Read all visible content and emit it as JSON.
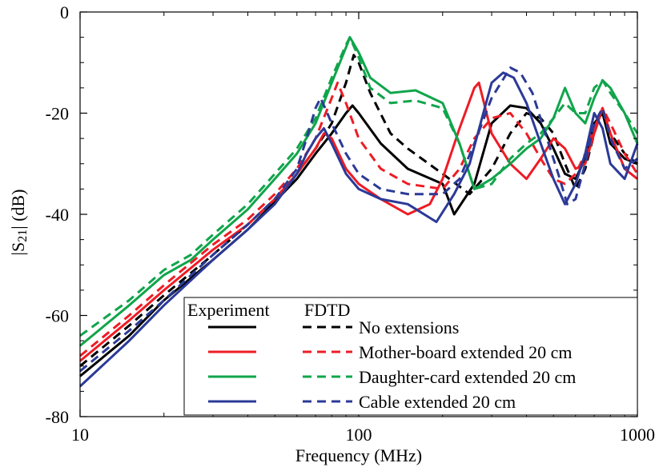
{
  "chart_data": {
    "type": "line",
    "title": "",
    "xlabel": "Frequency (MHz)",
    "ylabel_parts": [
      "|S",
      "21",
      "| (dB)"
    ],
    "x_scale": "log",
    "xlim": [
      10,
      1000
    ],
    "ylim": [
      -80,
      0
    ],
    "x_ticks": [
      10,
      100,
      1000
    ],
    "x_tick_labels": [
      "10",
      "100",
      "1000"
    ],
    "y_ticks": [
      0,
      -20,
      -40,
      -60,
      -80
    ],
    "y_tick_labels": [
      "0",
      "-20",
      "-40",
      "-60",
      "-80"
    ],
    "grid": false,
    "legend": {
      "placement": "bottom-right",
      "header_experiment": "Experiment",
      "header_fdtd": "FDTD",
      "entries": [
        "No extensions",
        "Mother-board extended 20 cm",
        "Daughter-card extended 20 cm",
        "Cable extended 20 cm"
      ]
    },
    "series": [
      {
        "name": "No extensions",
        "method": "Experiment",
        "color": "#000000",
        "dash": "solid",
        "points": [
          [
            10,
            -72
          ],
          [
            15,
            -64
          ],
          [
            20,
            -57
          ],
          [
            30,
            -49
          ],
          [
            40,
            -43
          ],
          [
            50,
            -37.5
          ],
          [
            60,
            -33
          ],
          [
            70,
            -28
          ],
          [
            80,
            -24
          ],
          [
            90,
            -20
          ],
          [
            95,
            -18.5
          ],
          [
            100,
            -20
          ],
          [
            120,
            -26
          ],
          [
            150,
            -31
          ],
          [
            200,
            -34
          ],
          [
            220,
            -40
          ],
          [
            260,
            -34
          ],
          [
            300,
            -22
          ],
          [
            350,
            -18.5
          ],
          [
            400,
            -19
          ],
          [
            450,
            -22
          ],
          [
            500,
            -27
          ],
          [
            550,
            -32
          ],
          [
            600,
            -33
          ],
          [
            650,
            -29
          ],
          [
            700,
            -22
          ],
          [
            750,
            -20
          ],
          [
            800,
            -26
          ],
          [
            900,
            -29
          ],
          [
            1000,
            -30
          ]
        ]
      },
      {
        "name": "No extensions",
        "method": "FDTD",
        "color": "#000000",
        "dash": "dashed",
        "points": [
          [
            10,
            -70
          ],
          [
            15,
            -62
          ],
          [
            20,
            -56
          ],
          [
            30,
            -48
          ],
          [
            40,
            -42
          ],
          [
            50,
            -37
          ],
          [
            60,
            -32
          ],
          [
            70,
            -27
          ],
          [
            80,
            -22
          ],
          [
            90,
            -14
          ],
          [
            96,
            -8.5
          ],
          [
            100,
            -10
          ],
          [
            110,
            -16
          ],
          [
            130,
            -24
          ],
          [
            150,
            -27
          ],
          [
            200,
            -32
          ],
          [
            250,
            -36
          ],
          [
            300,
            -31
          ],
          [
            350,
            -24
          ],
          [
            400,
            -20
          ],
          [
            450,
            -21
          ],
          [
            500,
            -24
          ],
          [
            550,
            -30
          ],
          [
            600,
            -35
          ],
          [
            650,
            -31
          ],
          [
            700,
            -24
          ],
          [
            750,
            -19
          ],
          [
            800,
            -24
          ],
          [
            900,
            -28
          ],
          [
            1000,
            -30
          ]
        ]
      },
      {
        "name": "Mother-board extended 20 cm",
        "method": "Experiment",
        "color": "#ee1c25",
        "dash": "solid",
        "points": [
          [
            10,
            -69
          ],
          [
            15,
            -61
          ],
          [
            20,
            -55
          ],
          [
            30,
            -47
          ],
          [
            40,
            -42
          ],
          [
            50,
            -37
          ],
          [
            60,
            -32
          ],
          [
            70,
            -27
          ],
          [
            75,
            -24
          ],
          [
            80,
            -25
          ],
          [
            90,
            -31
          ],
          [
            100,
            -34
          ],
          [
            120,
            -37
          ],
          [
            150,
            -40
          ],
          [
            180,
            -38
          ],
          [
            200,
            -33
          ],
          [
            230,
            -23
          ],
          [
            260,
            -15
          ],
          [
            270,
            -14
          ],
          [
            300,
            -24
          ],
          [
            350,
            -30
          ],
          [
            400,
            -33
          ],
          [
            450,
            -29
          ],
          [
            500,
            -25
          ],
          [
            550,
            -27
          ],
          [
            600,
            -31
          ],
          [
            650,
            -30
          ],
          [
            700,
            -24
          ],
          [
            750,
            -19
          ],
          [
            800,
            -24
          ],
          [
            900,
            -31
          ],
          [
            1000,
            -33
          ]
        ]
      },
      {
        "name": "Mother-board extended 20 cm",
        "method": "FDTD",
        "color": "#ee1c25",
        "dash": "dashed",
        "points": [
          [
            10,
            -68
          ],
          [
            15,
            -60
          ],
          [
            20,
            -54
          ],
          [
            30,
            -46
          ],
          [
            40,
            -41
          ],
          [
            50,
            -36
          ],
          [
            60,
            -31
          ],
          [
            70,
            -25
          ],
          [
            80,
            -17
          ],
          [
            84,
            -14
          ],
          [
            90,
            -18
          ],
          [
            100,
            -25
          ],
          [
            120,
            -31
          ],
          [
            150,
            -34
          ],
          [
            200,
            -35
          ],
          [
            230,
            -31
          ],
          [
            260,
            -25
          ],
          [
            300,
            -21
          ],
          [
            350,
            -20
          ],
          [
            400,
            -24
          ],
          [
            450,
            -29
          ],
          [
            500,
            -33
          ],
          [
            550,
            -34
          ],
          [
            600,
            -32
          ],
          [
            650,
            -28
          ],
          [
            700,
            -23
          ],
          [
            750,
            -19
          ],
          [
            800,
            -22
          ],
          [
            900,
            -28
          ],
          [
            1000,
            -32
          ]
        ]
      },
      {
        "name": "Daughter-card extended 20 cm",
        "method": "Experiment",
        "color": "#10a54b",
        "dash": "solid",
        "points": [
          [
            10,
            -66
          ],
          [
            15,
            -58
          ],
          [
            20,
            -52
          ],
          [
            25,
            -49
          ],
          [
            30,
            -45
          ],
          [
            40,
            -39
          ],
          [
            50,
            -33
          ],
          [
            60,
            -28
          ],
          [
            70,
            -22
          ],
          [
            80,
            -14
          ],
          [
            90,
            -7
          ],
          [
            93,
            -5
          ],
          [
            100,
            -8
          ],
          [
            110,
            -13
          ],
          [
            130,
            -16
          ],
          [
            160,
            -15.5
          ],
          [
            200,
            -18
          ],
          [
            230,
            -26
          ],
          [
            260,
            -35
          ],
          [
            300,
            -33
          ],
          [
            350,
            -30
          ],
          [
            400,
            -27
          ],
          [
            450,
            -25
          ],
          [
            500,
            -21
          ],
          [
            550,
            -15
          ],
          [
            600,
            -20
          ],
          [
            650,
            -22
          ],
          [
            700,
            -17
          ],
          [
            750,
            -13.5
          ],
          [
            800,
            -15
          ],
          [
            900,
            -20
          ],
          [
            1000,
            -26
          ]
        ]
      },
      {
        "name": "Daughter-card extended 20 cm",
        "method": "FDTD",
        "color": "#10a54b",
        "dash": "dashed",
        "points": [
          [
            10,
            -64
          ],
          [
            15,
            -57
          ],
          [
            20,
            -51
          ],
          [
            25,
            -48
          ],
          [
            30,
            -44
          ],
          [
            40,
            -38
          ],
          [
            50,
            -32
          ],
          [
            60,
            -27
          ],
          [
            70,
            -21
          ],
          [
            80,
            -13
          ],
          [
            90,
            -6.5
          ],
          [
            93,
            -5
          ],
          [
            100,
            -9
          ],
          [
            110,
            -15
          ],
          [
            130,
            -18
          ],
          [
            160,
            -17.5
          ],
          [
            200,
            -19
          ],
          [
            230,
            -26
          ],
          [
            260,
            -35
          ],
          [
            300,
            -34
          ],
          [
            350,
            -29
          ],
          [
            400,
            -26
          ],
          [
            450,
            -24
          ],
          [
            500,
            -21
          ],
          [
            550,
            -18
          ],
          [
            600,
            -20
          ],
          [
            650,
            -20
          ],
          [
            700,
            -15
          ],
          [
            750,
            -13.5
          ],
          [
            800,
            -16
          ],
          [
            900,
            -20
          ],
          [
            1000,
            -24
          ]
        ]
      },
      {
        "name": "Cable extended 20 cm",
        "method": "Experiment",
        "color": "#2b3a97",
        "dash": "solid",
        "points": [
          [
            10,
            -74
          ],
          [
            15,
            -65
          ],
          [
            20,
            -58
          ],
          [
            30,
            -49
          ],
          [
            40,
            -43
          ],
          [
            50,
            -38
          ],
          [
            60,
            -32
          ],
          [
            65,
            -28
          ],
          [
            70,
            -25
          ],
          [
            75,
            -23
          ],
          [
            80,
            -26
          ],
          [
            90,
            -32
          ],
          [
            100,
            -35
          ],
          [
            120,
            -37
          ],
          [
            150,
            -38
          ],
          [
            190,
            -41.5
          ],
          [
            220,
            -36
          ],
          [
            250,
            -30
          ],
          [
            280,
            -20
          ],
          [
            300,
            -14
          ],
          [
            330,
            -12
          ],
          [
            360,
            -13
          ],
          [
            400,
            -18
          ],
          [
            450,
            -26
          ],
          [
            500,
            -33
          ],
          [
            550,
            -38
          ],
          [
            600,
            -34
          ],
          [
            650,
            -28
          ],
          [
            700,
            -20
          ],
          [
            750,
            -23
          ],
          [
            800,
            -30
          ],
          [
            900,
            -33
          ],
          [
            1000,
            -26
          ]
        ]
      },
      {
        "name": "Cable extended 20 cm",
        "method": "FDTD",
        "color": "#2b3a97",
        "dash": "dashed",
        "points": [
          [
            10,
            -71
          ],
          [
            15,
            -63
          ],
          [
            20,
            -57
          ],
          [
            30,
            -48
          ],
          [
            40,
            -42
          ],
          [
            50,
            -37
          ],
          [
            60,
            -31
          ],
          [
            65,
            -25
          ],
          [
            70,
            -19
          ],
          [
            73,
            -17
          ],
          [
            80,
            -22
          ],
          [
            90,
            -28
          ],
          [
            100,
            -32
          ],
          [
            120,
            -35
          ],
          [
            150,
            -36
          ],
          [
            200,
            -36
          ],
          [
            230,
            -33
          ],
          [
            260,
            -26
          ],
          [
            300,
            -17
          ],
          [
            350,
            -11
          ],
          [
            380,
            -12
          ],
          [
            420,
            -16
          ],
          [
            480,
            -26
          ],
          [
            520,
            -32
          ],
          [
            560,
            -38
          ],
          [
            600,
            -37
          ],
          [
            650,
            -30
          ],
          [
            700,
            -22
          ],
          [
            750,
            -19
          ],
          [
            800,
            -25
          ],
          [
            900,
            -31
          ],
          [
            1000,
            -29
          ]
        ]
      }
    ]
  }
}
